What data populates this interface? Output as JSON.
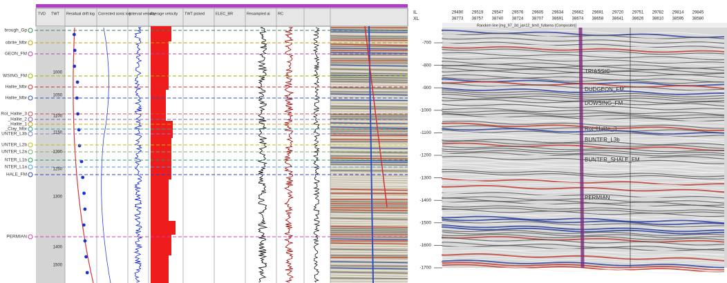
{
  "well_panel": {
    "formations": [
      "brough_Gp",
      "obrite_Mbr",
      "GEON_FM",
      "WSING_FM",
      "Halite_Mbr",
      "Halite_Mbr",
      "Rot_Halite_3",
      "_Halite_2",
      "_Halite_1",
      "_Clay_Mbr",
      "UNTER_L3b",
      "UNTER_L2b",
      "UNTER_L2a",
      "NTER_L1b",
      "NTER_L1a",
      "HALE_FM",
      "PERMIAN"
    ],
    "depths": [
      "1000",
      "1050",
      "1100",
      "1150",
      "1200",
      "1250",
      "1300",
      "1400",
      "1500"
    ],
    "track_headers": [
      "TVD",
      "TWT",
      "Residual drift log",
      "Corrected sonic log",
      "Interval velocity",
      "Average velocity",
      "TWT picked",
      "ELEC_BR",
      "Resampled ai",
      "RC"
    ]
  },
  "seismic_panel": {
    "il_label": "IL",
    "xl_label": "XL",
    "il": [
      "29490",
      "29519",
      "29547",
      "29576",
      "29605",
      "29634",
      "29662",
      "29691",
      "29720",
      "29751",
      "29782",
      "29814",
      "29845"
    ],
    "xl": [
      "38773",
      "38757",
      "38740",
      "38724",
      "38707",
      "38691",
      "38674",
      "38658",
      "38641",
      "38626",
      "38610",
      "38595",
      "38580"
    ],
    "section_title": "Random line [mg_97_3d_jan12_tim0_fullarea (Composite)]",
    "times": [
      "-700",
      "-800",
      "-900",
      "-1000",
      "-1100",
      "-1200",
      "-1300",
      "-1400",
      "-1500",
      "-1600",
      "-1700"
    ],
    "horizons": [
      "TRIASSIC",
      "DUDGEON_FM",
      "DOWSING_FM",
      "Rot_Halite_3",
      "BUNTER_L3b",
      "BUNTER_SHALE_FM",
      "PERMIAN"
    ]
  }
}
